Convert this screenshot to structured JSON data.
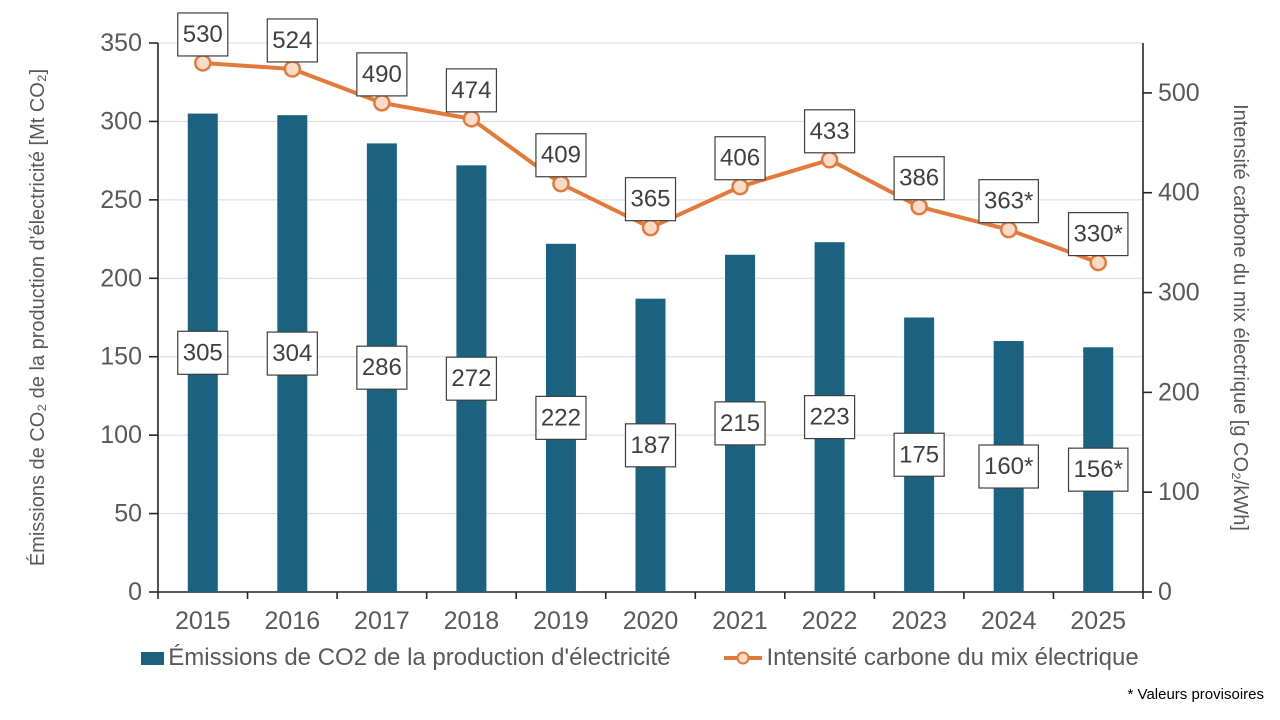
{
  "chart_data": {
    "type": "bar",
    "combo": "bar+line",
    "categories": [
      "2015",
      "2016",
      "2017",
      "2018",
      "2019",
      "2020",
      "2021",
      "2022",
      "2023",
      "2024",
      "2025"
    ],
    "series": [
      {
        "name": "Émissions de CO2 de la production d'électricité",
        "chart_type": "bar",
        "axis": "left",
        "values": [
          305,
          304,
          286,
          272,
          222,
          187,
          215,
          223,
          175,
          160,
          156
        ],
        "data_labels": [
          "305",
          "304",
          "286",
          "272",
          "222",
          "187",
          "215",
          "223",
          "175",
          "160*",
          "156*"
        ],
        "color": "#1A627F"
      },
      {
        "name": "Intensité carbone du mix électrique",
        "chart_type": "line",
        "axis": "right",
        "values": [
          530,
          524,
          490,
          474,
          409,
          365,
          406,
          433,
          386,
          363,
          330
        ],
        "data_labels": [
          "530",
          "524",
          "490",
          "474",
          "409",
          "365",
          "406",
          "433",
          "386",
          "363*",
          "330*"
        ],
        "color": "#E4793C",
        "marker_fill": "#FADCC8"
      }
    ],
    "left_axis": {
      "title": "Émissions de CO₂ de la production d'électricité [Mt CO₂]",
      "min": 0,
      "max": 350,
      "tick_step": 50
    },
    "right_axis": {
      "title": "Intensité carbone du mix électrique [g CO₂/kWh]",
      "min": 0,
      "scale_max": 550,
      "tick_max": 500,
      "tick_step": 100
    },
    "grid": "horizontal",
    "legend_position": "bottom",
    "footnote": "* Valeurs provisoires"
  },
  "colors": {
    "bar": "#1A627F",
    "line": "#E4793C",
    "marker_fill": "#FADCC8",
    "axis_line": "#262626",
    "gridline": "#D9D9D9",
    "tick_text": "#595959",
    "label_text": "#404040",
    "label_box_border": "#3F3F3F"
  }
}
